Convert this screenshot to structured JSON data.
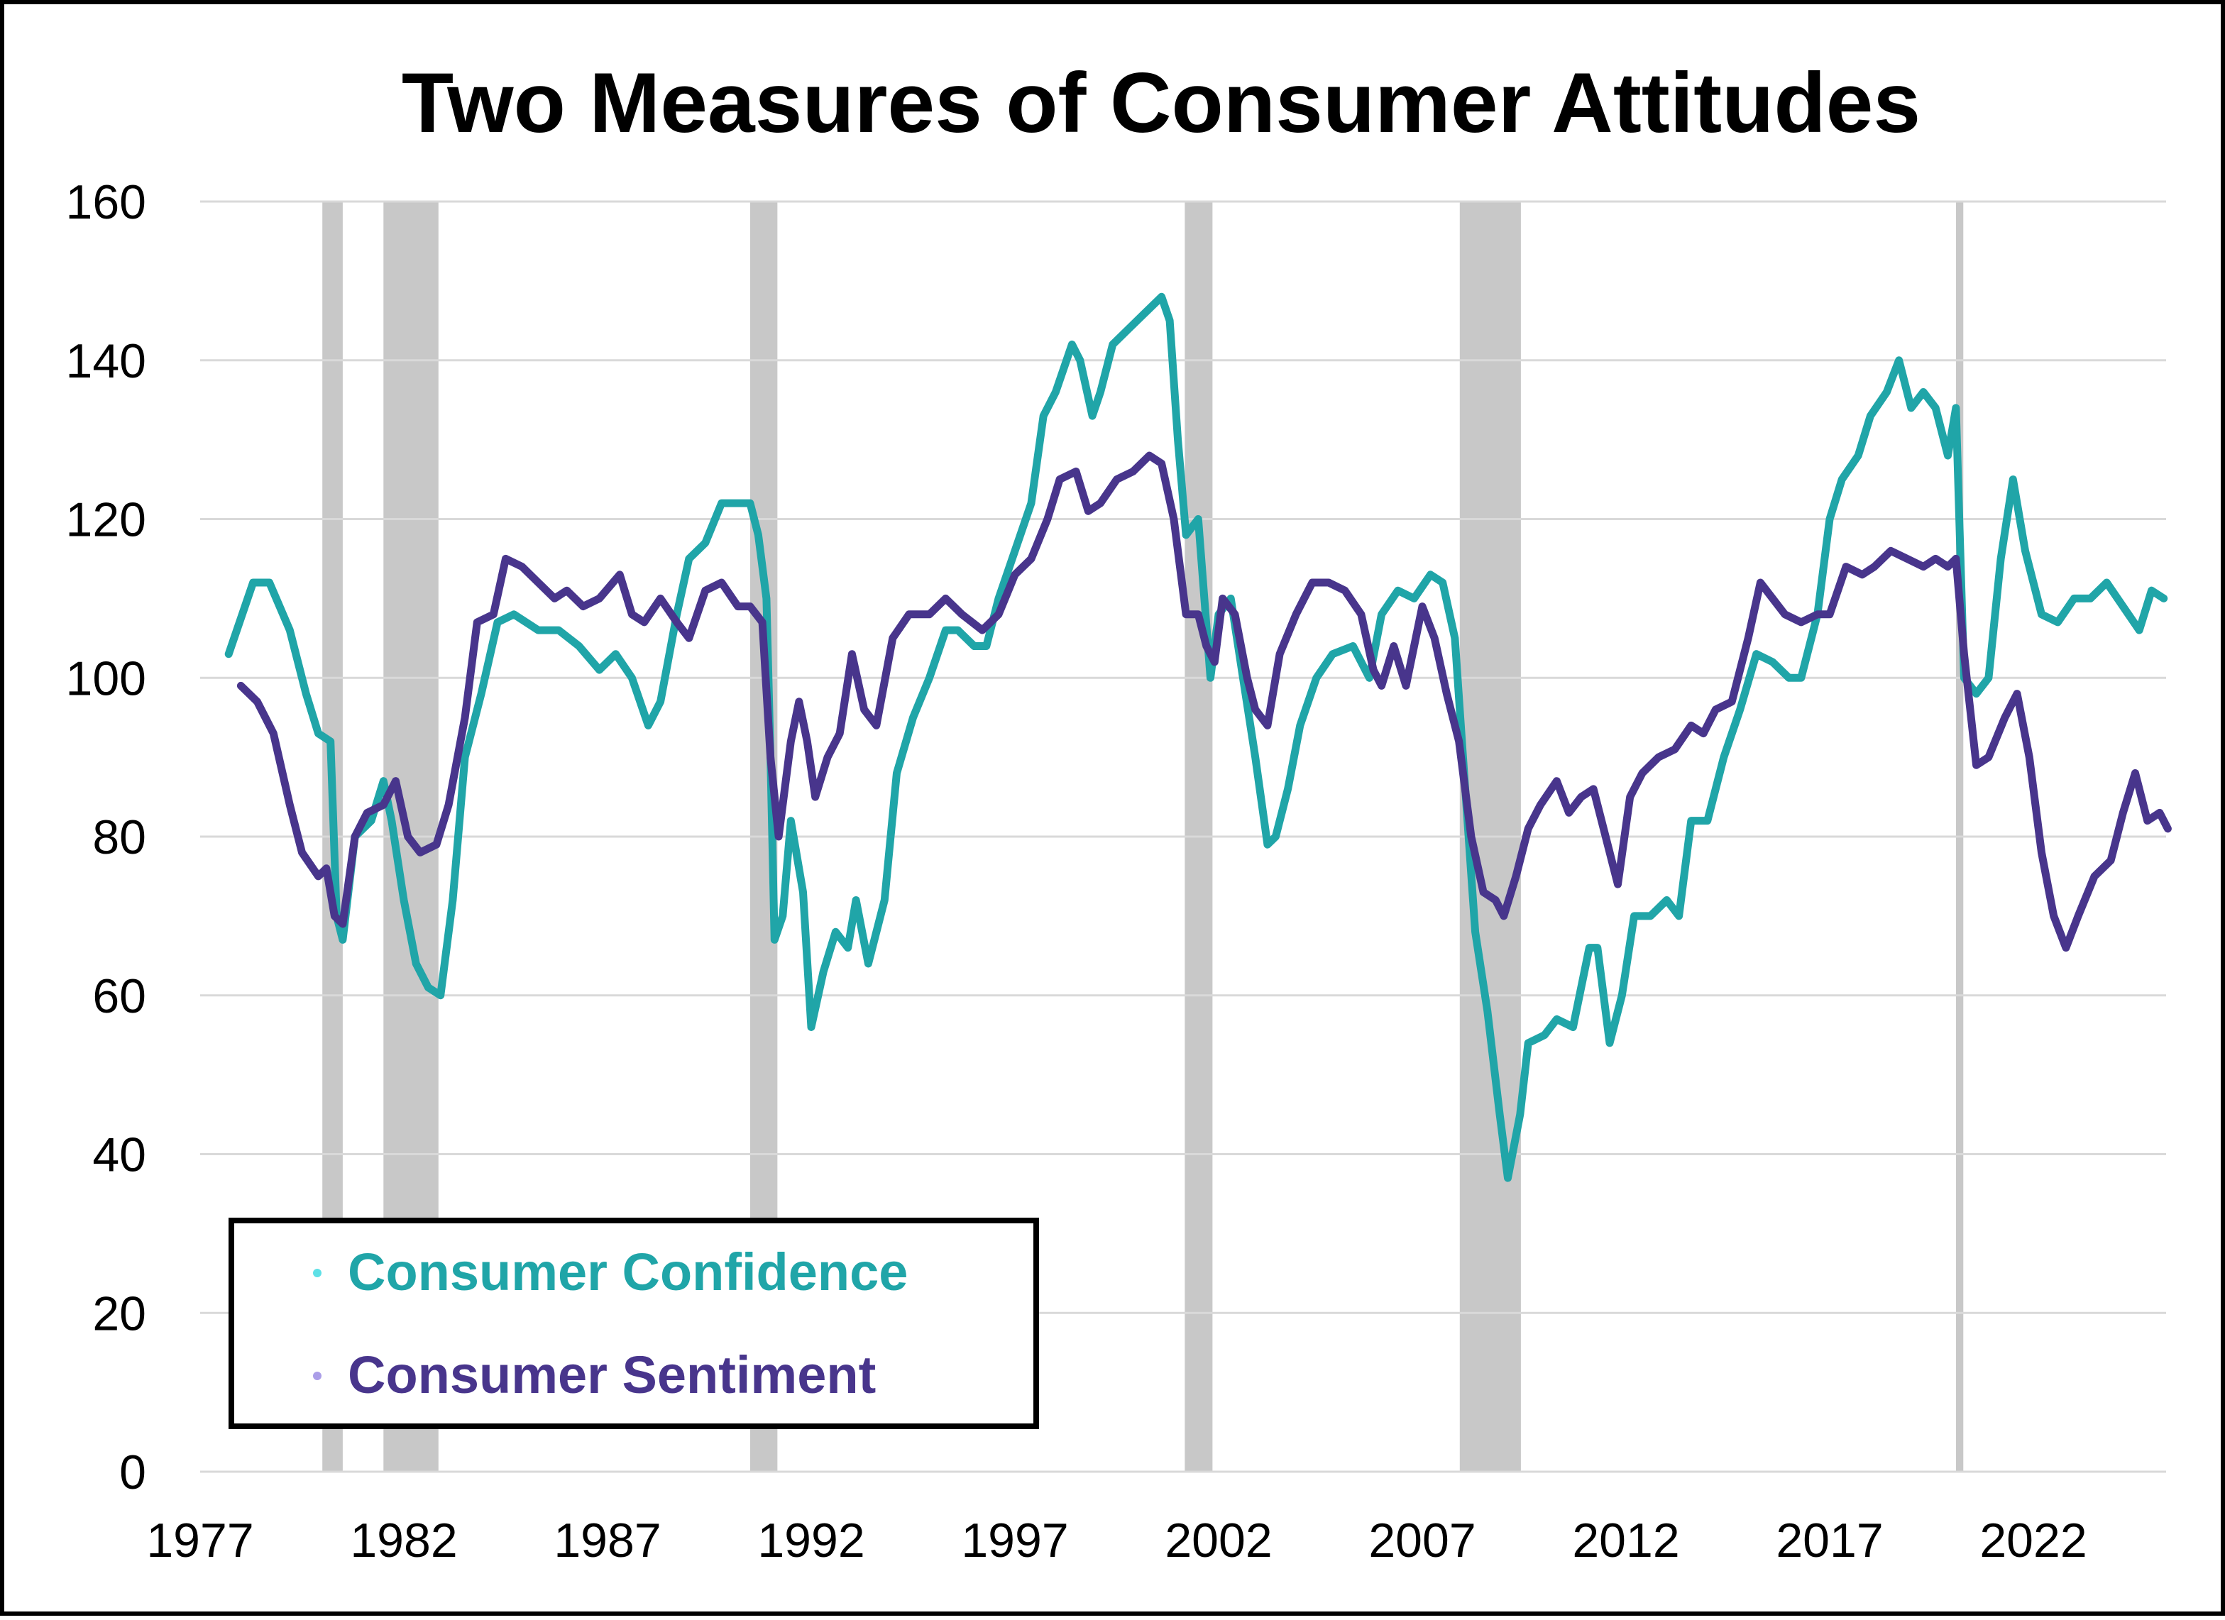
{
  "chart_data": {
    "type": "line",
    "title": "Two Measures of Consumer Attitudes",
    "xlabel": "",
    "ylabel": "",
    "xlim": [
      1977,
      2026
    ],
    "ylim": [
      0,
      160
    ],
    "x_ticks": [
      "1977",
      "1982",
      "1987",
      "1992",
      "1997",
      "2002",
      "2007",
      "2012",
      "2017",
      "2022"
    ],
    "y_ticks": [
      "0",
      "20",
      "40",
      "60",
      "80",
      "100",
      "120",
      "140",
      "160"
    ],
    "grid": "horizontal",
    "legend_placement": "bottom-left",
    "recessions": [
      [
        1980.0,
        1980.5
      ],
      [
        1981.5,
        1982.85
      ],
      [
        1990.5,
        1991.17
      ],
      [
        2001.17,
        2001.85
      ],
      [
        2007.92,
        2009.42
      ],
      [
        2020.1,
        2020.28
      ]
    ],
    "colors": {
      "confidence_line": "#20A5A8",
      "confidence_dots": "#5EE0E6",
      "sentiment_line": "#48358C",
      "sentiment_dots": "#AB9EE8",
      "recession": "#C8C8C8"
    },
    "series": [
      {
        "name": "Consumer Confidence",
        "x": [
          1977.7,
          1978.3,
          1978.7,
          1979.2,
          1979.6,
          1979.9,
          1980.2,
          1980.35,
          1980.5,
          1980.8,
          1981.2,
          1981.5,
          1981.7,
          1982.0,
          1982.3,
          1982.6,
          1982.9,
          1983.2,
          1983.5,
          1983.9,
          1984.3,
          1984.7,
          1985.3,
          1985.8,
          1986.3,
          1986.8,
          1987.2,
          1987.6,
          1988.0,
          1988.3,
          1988.7,
          1989.0,
          1989.4,
          1989.8,
          1990.2,
          1990.5,
          1990.7,
          1990.9,
          1991.0,
          1991.1,
          1991.3,
          1991.5,
          1991.8,
          1992.0,
          1992.3,
          1992.6,
          1992.9,
          1993.1,
          1993.4,
          1993.8,
          1994.1,
          1994.5,
          1994.9,
          1995.3,
          1995.6,
          1996.0,
          1996.3,
          1996.6,
          1997.0,
          1997.4,
          1997.7,
          1998.0,
          1998.4,
          1998.6,
          1998.9,
          1999.1,
          1999.4,
          1999.8,
          2000.2,
          2000.6,
          2000.8,
          2001.0,
          2001.2,
          2001.5,
          2001.8,
          2002.0,
          2002.3,
          2002.6,
          2002.9,
          2003.2,
          2003.4,
          2003.7,
          2004.0,
          2004.4,
          2004.8,
          2005.3,
          2005.7,
          2006.0,
          2006.4,
          2006.8,
          2007.2,
          2007.5,
          2007.8,
          2008.0,
          2008.3,
          2008.6,
          2008.9,
          2009.1,
          2009.4,
          2009.6,
          2010.0,
          2010.3,
          2010.7,
          2011.1,
          2011.3,
          2011.6,
          2011.9,
          2012.2,
          2012.6,
          2013.0,
          2013.3,
          2013.6,
          2014.0,
          2014.4,
          2014.8,
          2015.2,
          2015.6,
          2016.0,
          2016.3,
          2016.7,
          2017.0,
          2017.3,
          2017.7,
          2018.0,
          2018.4,
          2018.7,
          2019.0,
          2019.3,
          2019.6,
          2019.9,
          2020.1,
          2020.3,
          2020.6,
          2020.9,
          2021.2,
          2021.5,
          2021.8,
          2022.2,
          2022.6,
          2023.0,
          2023.4,
          2023.8,
          2024.2,
          2024.6,
          2024.9,
          2025.2
        ],
        "values": [
          103,
          112,
          112,
          106,
          98,
          93,
          92,
          70,
          67,
          80,
          82,
          87,
          82,
          72,
          64,
          61,
          60,
          72,
          90,
          98,
          107,
          108,
          106,
          106,
          104,
          101,
          103,
          100,
          94,
          97,
          108,
          115,
          117,
          122,
          122,
          122,
          118,
          110,
          90,
          67,
          70,
          82,
          73,
          56,
          63,
          68,
          66,
          72,
          64,
          72,
          88,
          95,
          100,
          106,
          106,
          104,
          104,
          110,
          116,
          122,
          133,
          136,
          142,
          140,
          133,
          136,
          142,
          144,
          146,
          148,
          145,
          130,
          118,
          120,
          100,
          108,
          110,
          100,
          90,
          79,
          80,
          86,
          94,
          100,
          103,
          104,
          100,
          108,
          111,
          110,
          113,
          112,
          105,
          90,
          68,
          58,
          45,
          37,
          45,
          54,
          55,
          57,
          56,
          66,
          66,
          54,
          60,
          70,
          70,
          72,
          70,
          82,
          82,
          90,
          96,
          103,
          102,
          100,
          100,
          108,
          120,
          125,
          128,
          133,
          136,
          140,
          134,
          136,
          134,
          128,
          134,
          100,
          98,
          100,
          115,
          125,
          116,
          108,
          107,
          110,
          110,
          112,
          109,
          106,
          111,
          110
        ]
      },
      {
        "name": "Consumer Sentiment",
        "x": [
          1978.0,
          1978.4,
          1978.8,
          1979.2,
          1979.5,
          1979.9,
          1980.1,
          1980.3,
          1980.5,
          1980.8,
          1981.1,
          1981.5,
          1981.8,
          1982.1,
          1982.4,
          1982.8,
          1983.1,
          1983.5,
          1983.8,
          1984.2,
          1984.5,
          1984.9,
          1985.3,
          1985.7,
          1986.0,
          1986.4,
          1986.8,
          1987.3,
          1987.6,
          1987.9,
          1988.3,
          1988.7,
          1989.0,
          1989.4,
          1989.8,
          1990.2,
          1990.5,
          1990.8,
          1991.0,
          1991.2,
          1991.5,
          1991.7,
          1991.9,
          1992.1,
          1992.4,
          1992.7,
          1993.0,
          1993.3,
          1993.6,
          1994.0,
          1994.4,
          1994.9,
          1995.3,
          1995.7,
          1996.2,
          1996.6,
          1997.0,
          1997.4,
          1997.8,
          1998.1,
          1998.5,
          1998.8,
          1999.1,
          1999.5,
          1999.9,
          2000.3,
          2000.6,
          2000.9,
          2001.2,
          2001.5,
          2001.7,
          2001.9,
          2002.1,
          2002.4,
          2002.7,
          2002.9,
          2003.2,
          2003.5,
          2003.9,
          2004.3,
          2004.7,
          2005.1,
          2005.5,
          2005.8,
          2006.0,
          2006.3,
          2006.6,
          2007.0,
          2007.3,
          2007.6,
          2007.9,
          2008.2,
          2008.5,
          2008.8,
          2009.0,
          2009.3,
          2009.6,
          2009.9,
          2010.3,
          2010.6,
          2010.9,
          2011.2,
          2011.5,
          2011.8,
          2012.1,
          2012.4,
          2012.8,
          2013.2,
          2013.6,
          2013.9,
          2014.2,
          2014.6,
          2015.0,
          2015.3,
          2015.6,
          2015.9,
          2016.3,
          2016.7,
          2017.0,
          2017.4,
          2017.8,
          2018.1,
          2018.5,
          2018.9,
          2019.3,
          2019.6,
          2019.9,
          2020.1,
          2020.3,
          2020.6,
          2020.9,
          2021.3,
          2021.6,
          2021.9,
          2022.2,
          2022.5,
          2022.8,
          2023.1,
          2023.5,
          2023.9,
          2024.2,
          2024.5,
          2024.8,
          2025.1,
          2025.3
        ],
        "values": [
          99,
          97,
          93,
          84,
          78,
          75,
          76,
          70,
          69,
          80,
          83,
          84,
          87,
          80,
          78,
          79,
          84,
          95,
          107,
          108,
          115,
          114,
          112,
          110,
          111,
          109,
          110,
          113,
          108,
          107,
          110,
          107,
          105,
          111,
          112,
          109,
          109,
          107,
          90,
          80,
          92,
          97,
          92,
          85,
          90,
          93,
          103,
          96,
          94,
          105,
          108,
          108,
          110,
          108,
          106,
          108,
          113,
          115,
          120,
          125,
          126,
          121,
          122,
          125,
          126,
          128,
          127,
          120,
          108,
          108,
          104,
          102,
          110,
          108,
          100,
          96,
          94,
          103,
          108,
          112,
          112,
          111,
          108,
          101,
          99,
          104,
          99,
          109,
          105,
          98,
          92,
          80,
          73,
          72,
          70,
          75,
          81,
          84,
          87,
          83,
          85,
          86,
          80,
          74,
          85,
          88,
          90,
          91,
          94,
          93,
          96,
          97,
          105,
          112,
          110,
          108,
          107,
          108,
          108,
          114,
          113,
          114,
          116,
          115,
          114,
          115,
          114,
          115,
          103,
          89,
          90,
          95,
          98,
          90,
          78,
          70,
          66,
          70,
          75,
          77,
          83,
          88,
          82,
          83,
          81
        ]
      }
    ]
  }
}
